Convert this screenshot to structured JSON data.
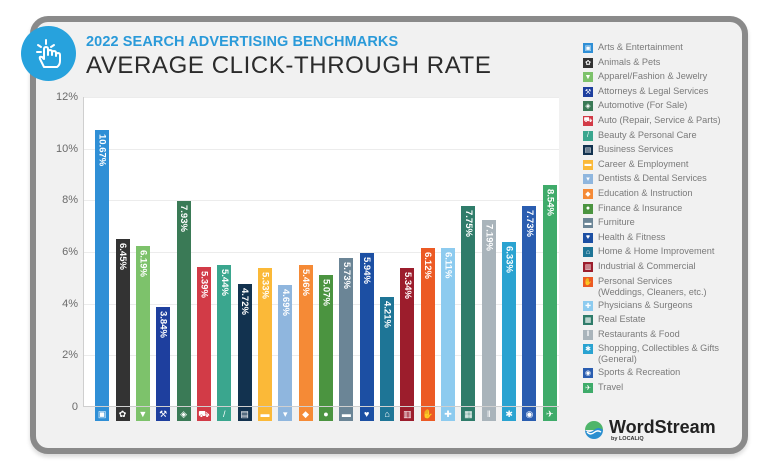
{
  "header": {
    "kicker": "2022 SEARCH ADVERTISING BENCHMARKS",
    "title": "AVERAGE CLICK-THROUGH RATE",
    "badge_icon": "pointer-hand-click-icon"
  },
  "brand": {
    "name": "WordStream",
    "sub": "by LOCALiQ"
  },
  "colors": {
    "accent": "#27a2dd",
    "frame": "#8a8a8a"
  },
  "axis": {
    "yticks": [
      "12%",
      "10%",
      "8%",
      "6%",
      "4%",
      "2%",
      "0"
    ]
  },
  "chart_data": {
    "type": "bar",
    "title": "AVERAGE CLICK-THROUGH RATE",
    "subtitle": "2022 SEARCH ADVERTISING BENCHMARKS",
    "xlabel": "",
    "ylabel": "",
    "ylim": [
      0,
      12
    ],
    "yticks": [
      0,
      2,
      4,
      6,
      8,
      10,
      12
    ],
    "grid": true,
    "legend_position": "right",
    "categories": [
      "Arts & Entertainment",
      "Animals & Pets",
      "Apparel/Fashion & Jewelry",
      "Attorneys & Legal Services",
      "Automotive (For Sale)",
      "Auto (Repair, Service & Parts)",
      "Beauty & Personal Care",
      "Business Services",
      "Career & Employment",
      "Dentists & Dental Services",
      "Education & Instruction",
      "Finance & Insurance",
      "Furniture",
      "Health & Fitness",
      "Home & Home Improvement",
      "Industrial & Commercial",
      "Personal Services (Weddings, Cleaners, etc.)",
      "Physicians & Surgeons",
      "Real Estate",
      "Restaurants & Food",
      "Shopping, Collectibles & Gifts (General)",
      "Sports & Recreation",
      "Travel"
    ],
    "values": [
      10.67,
      6.45,
      6.19,
      3.84,
      7.93,
      5.39,
      5.44,
      4.72,
      5.33,
      4.69,
      5.46,
      5.07,
      5.73,
      5.94,
      4.21,
      5.34,
      6.12,
      6.11,
      7.75,
      7.19,
      6.33,
      7.73,
      8.54
    ],
    "labels": [
      "10.67%",
      "6.45%",
      "6.19%",
      "3.84%",
      "7.93%",
      "5.39%",
      "5.44%",
      "4.72%",
      "5.33%",
      "4.69%",
      "5.46%",
      "5.07%",
      "5.73%",
      "5.94%",
      "4.21%",
      "5.34%",
      "6.12%",
      "6.11%",
      "7.75%",
      "7.19%",
      "6.33%",
      "7.73%",
      "8.54%"
    ],
    "bar_colors": [
      "#2f8fd6",
      "#333333",
      "#7dc26b",
      "#1e3f9e",
      "#3a7a56",
      "#d23b47",
      "#3aa68e",
      "#12324f",
      "#fbb938",
      "#8fb6de",
      "#f58a36",
      "#4b9440",
      "#6b8596",
      "#1c4fa3",
      "#1e7596",
      "#9c1d2c",
      "#ec5a24",
      "#8dcbef",
      "#2f7c6a",
      "#a9b4bb",
      "#2aa3d1",
      "#2a5db0",
      "#3fab6a"
    ]
  },
  "legend": {
    "items": [
      {
        "label": "Arts & Entertainment",
        "icon": "picture-icon",
        "glyph": "▣"
      },
      {
        "label": "Animals & Pets",
        "icon": "paw-icon",
        "glyph": "✿"
      },
      {
        "label": "Apparel/Fashion & Jewelry",
        "icon": "shirt-icon",
        "glyph": "▼"
      },
      {
        "label": "Attorneys & Legal Services",
        "icon": "gavel-icon",
        "glyph": "⚒"
      },
      {
        "label": "Automotive (For Sale)",
        "icon": "tag-icon",
        "glyph": "◈"
      },
      {
        "label": "Auto (Repair, Service & Parts)",
        "icon": "car-icon",
        "glyph": "⛟"
      },
      {
        "label": "Beauty & Personal Care",
        "icon": "brush-icon",
        "glyph": "/"
      },
      {
        "label": "Business Services",
        "icon": "document-icon",
        "glyph": "▤"
      },
      {
        "label": "Career & Employment",
        "icon": "briefcase-icon",
        "glyph": "▬"
      },
      {
        "label": "Dentists & Dental Services",
        "icon": "tooth-icon",
        "glyph": "▾"
      },
      {
        "label": "Education & Instruction",
        "icon": "graduation-cap-icon",
        "glyph": "◆"
      },
      {
        "label": "Finance & Insurance",
        "icon": "money-icon",
        "glyph": "●"
      },
      {
        "label": "Furniture",
        "icon": "armchair-icon",
        "glyph": "▬"
      },
      {
        "label": "Health & Fitness",
        "icon": "heartbeat-icon",
        "glyph": "♥"
      },
      {
        "label": "Home & Home Improvement",
        "icon": "house-icon",
        "glyph": "⌂"
      },
      {
        "label": "Industrial & Commercial",
        "icon": "factory-icon",
        "glyph": "▥"
      },
      {
        "label": "Personal Services (Weddings, Cleaners, etc.)",
        "line1": "Personal Services",
        "line2": "(Weddings, Cleaners, etc.)",
        "icon": "service-hand-icon",
        "glyph": "✋"
      },
      {
        "label": "Physicians & Surgeons",
        "icon": "medical-cross-icon",
        "glyph": "✚"
      },
      {
        "label": "Real Estate",
        "icon": "storefront-icon",
        "glyph": "▦"
      },
      {
        "label": "Restaurants & Food",
        "icon": "fork-knife-icon",
        "glyph": "‖"
      },
      {
        "label": "Shopping, Collectibles & Gifts (General)",
        "line1": "Shopping, Collectibles & Gifts",
        "line2": "(General)",
        "icon": "gift-bow-icon",
        "glyph": "✱"
      },
      {
        "label": "Sports & Recreation",
        "icon": "ball-icon",
        "glyph": "◉"
      },
      {
        "label": "Travel",
        "icon": "airplane-icon",
        "glyph": "✈"
      }
    ]
  }
}
